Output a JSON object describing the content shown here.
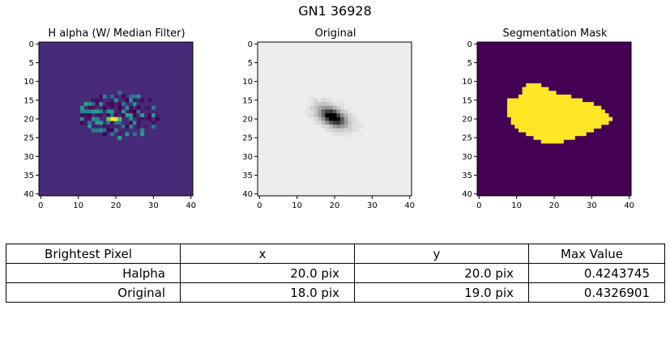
{
  "suptitle": "GN1 36928",
  "chart_data": [
    {
      "type": "heatmap",
      "title": "H alpha (W/ Median Filter)",
      "colormap": "viridis",
      "xlim": [
        -0.5,
        40.5
      ],
      "ylim": [
        40.5,
        -0.5
      ],
      "xticks": [
        "0",
        "10",
        "20",
        "30",
        "40"
      ],
      "yticks": [
        "0",
        "5",
        "10",
        "15",
        "20",
        "25",
        "30",
        "35",
        "40"
      ],
      "background_value": 0.12,
      "max_value": 0.4243745,
      "peak": {
        "x": 20,
        "y": 20
      }
    },
    {
      "type": "heatmap",
      "title": "Original",
      "colormap": "gray_r",
      "xlim": [
        -0.5,
        40.5
      ],
      "ylim": [
        40.5,
        -0.5
      ],
      "xticks": [
        "0",
        "10",
        "20",
        "30",
        "40"
      ],
      "yticks": [
        "0",
        "5",
        "10",
        "15",
        "20",
        "25",
        "30",
        "35",
        "40"
      ],
      "max_value": 0.4326901,
      "peak": {
        "x": 18,
        "y": 19
      }
    },
    {
      "type": "heatmap",
      "title": "Segmentation Mask",
      "colormap": "viridis",
      "xlim": [
        -0.5,
        40.5
      ],
      "ylim": [
        40.5,
        -0.5
      ],
      "xticks": [
        "0",
        "10",
        "20",
        "30",
        "40"
      ],
      "yticks": [
        "0",
        "5",
        "10",
        "15",
        "20",
        "25",
        "30",
        "35",
        "40"
      ],
      "mask_rows": [
        [
          11,
          13,
          16
        ],
        [
          12,
          12,
          18
        ],
        [
          13,
          12,
          20
        ],
        [
          14,
          11,
          24
        ],
        [
          15,
          8,
          27
        ],
        [
          16,
          8,
          30
        ],
        [
          17,
          8,
          32
        ],
        [
          18,
          8,
          33
        ],
        [
          19,
          8,
          33
        ],
        [
          20,
          9,
          34
        ],
        [
          21,
          9,
          33
        ],
        [
          22,
          10,
          32
        ],
        [
          23,
          11,
          30
        ],
        [
          24,
          13,
          28
        ],
        [
          25,
          15,
          25
        ],
        [
          26,
          17,
          22
        ]
      ],
      "mask_extra": [
        [
          19,
          34
        ],
        [
          20,
          35
        ],
        [
          21,
          34
        ]
      ]
    }
  ],
  "table": {
    "headers": [
      "Brightest Pixel",
      "x",
      "y",
      "Max Value"
    ],
    "rows": [
      [
        "Halpha",
        "20.0 pix",
        "20.0 pix",
        "0.4243745"
      ],
      [
        "Original",
        "18.0 pix",
        "19.0 pix",
        "0.4326901"
      ]
    ]
  }
}
